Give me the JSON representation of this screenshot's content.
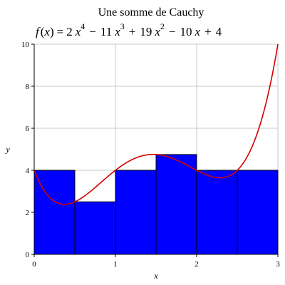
{
  "chart_data": {
    "type": "bar",
    "title": "Une somme de Cauchy",
    "formula": {
      "lhs_f": "f",
      "lhs_open": "(",
      "lhs_x": "x",
      "lhs_close": ")",
      "equals": "=",
      "t1_coef": "2",
      "t1_var": "x",
      "t1_exp": "4",
      "op1": "−",
      "t2_coef": "11",
      "t2_var": "x",
      "t2_exp": "3",
      "op2": "+",
      "t3_coef": "19",
      "t3_var": "x",
      "t3_exp": "2",
      "op3": "−",
      "t4_coef": "10",
      "t4_var": "x",
      "op4": "+",
      "t5_const": "4"
    },
    "xlabel": "x",
    "ylabel": "y",
    "xlim": [
      0,
      3
    ],
    "ylim": [
      0,
      10
    ],
    "x_ticks": [
      "0",
      "1",
      "2",
      "3"
    ],
    "y_ticks": [
      "0",
      "2",
      "4",
      "6",
      "8",
      "10"
    ],
    "grid": true,
    "rectangles": [
      {
        "x0": 0.0,
        "x1": 0.5,
        "height": 4.0
      },
      {
        "x0": 0.5,
        "x1": 1.0,
        "height": 2.5
      },
      {
        "x0": 1.0,
        "x1": 1.5,
        "height": 4.0
      },
      {
        "x0": 1.5,
        "x1": 2.0,
        "height": 4.75
      },
      {
        "x0": 2.0,
        "x1": 2.5,
        "height": 4.0
      },
      {
        "x0": 2.5,
        "x1": 3.0,
        "height": 4.0
      }
    ],
    "curve_coefficients": [
      2,
      -11,
      19,
      -10,
      4
    ],
    "colors": {
      "bars": "#0000ff",
      "bar_edges": "#000000",
      "curve": "#d40000",
      "grid": "#c8c8c8"
    }
  }
}
